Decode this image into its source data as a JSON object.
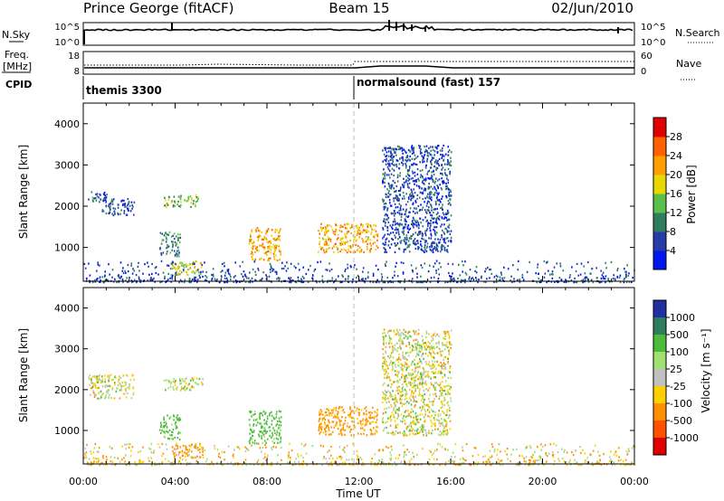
{
  "header": {
    "station": "Prince George (fitACF)",
    "beam": "Beam 15",
    "date": "02/Jun/2010"
  },
  "strips": {
    "nsky_label": "N.Sky",
    "nsky_ticks": [
      "10^5",
      "10^0"
    ],
    "nsearch_label": "N.Search",
    "nsearch_ticks": [
      "10^5",
      "10^0"
    ],
    "freq_label": "Freq.",
    "freq_unit": "[MHz]",
    "freq_ticks": [
      "18",
      "8"
    ],
    "nave_label": "Nave",
    "nave_ticks": [
      "60",
      "0"
    ],
    "cpid_label": "CPID",
    "cpid_segments": [
      {
        "label": "themis 3300",
        "start_hour": 0
      },
      {
        "label": "normalsound (fast) 157",
        "start_hour": 12
      }
    ]
  },
  "chart_data": [
    {
      "type": "heatmap",
      "panel": "power",
      "xlabel": "",
      "ylabel": "Slant Range [km]",
      "xlim": [
        0,
        24
      ],
      "ylim": [
        180,
        4500
      ],
      "y_ticks": [
        "1000",
        "2000",
        "3000",
        "4000"
      ],
      "colorbar_label": "Power [dB]",
      "colorbar_ticks": [
        "4",
        "8",
        "12",
        "16",
        "20",
        "24",
        "28"
      ],
      "colors": [
        "#0018f0",
        "#283ca8",
        "#2e7d5f",
        "#5bc04a",
        "#e6d800",
        "#ffa000",
        "#ff6000",
        "#e00000"
      ],
      "scatter_regions": [
        {
          "hours": [
            0.2,
            1.0
          ],
          "range_km": [
            2100,
            2400
          ],
          "value": 6
        },
        {
          "hours": [
            0.8,
            2.2
          ],
          "range_km": [
            1800,
            2200
          ],
          "value": 4
        },
        {
          "hours": [
            3.5,
            5.0
          ],
          "range_km": [
            2000,
            2300
          ],
          "value": 12
        },
        {
          "hours": [
            3.3,
            4.2
          ],
          "range_km": [
            800,
            1400
          ],
          "value": 8
        },
        {
          "hours": [
            3.8,
            5.2
          ],
          "range_km": [
            350,
            700
          ],
          "value": 16
        },
        {
          "hours": [
            7.2,
            8.6
          ],
          "range_km": [
            700,
            1500
          ],
          "value": 20
        },
        {
          "hours": [
            10.2,
            12.8
          ],
          "range_km": [
            900,
            1600
          ],
          "value": 20
        },
        {
          "hours": [
            13.0,
            16.0
          ],
          "range_km": [
            900,
            3500
          ],
          "value": 4
        },
        {
          "hours": [
            0.0,
            24.0
          ],
          "range_km": [
            180,
            700
          ],
          "value": 4
        }
      ]
    },
    {
      "type": "heatmap",
      "panel": "velocity",
      "xlabel": "Time UT",
      "ylabel": "Slant Range [km]",
      "xlim": [
        0,
        24
      ],
      "ylim": [
        180,
        4500
      ],
      "x_ticks": [
        "00:00",
        "04:00",
        "08:00",
        "12:00",
        "16:00",
        "20:00",
        "00:00"
      ],
      "y_ticks": [
        "1000",
        "2000",
        "3000",
        "4000"
      ],
      "colorbar_label": "Velocity [m s⁻¹]",
      "colorbar_ticks": [
        "1000",
        "500",
        "100",
        "25",
        "-25",
        "-100",
        "-500",
        "-1000"
      ],
      "colors": [
        "#2030a0",
        "#2e7d5f",
        "#4cbb3c",
        "#a0e070",
        "#c0c0c0",
        "#ffd000",
        "#ff9000",
        "#ff5000",
        "#e00000"
      ],
      "scatter_regions": [
        {
          "hours": [
            0.2,
            2.2
          ],
          "range_km": [
            1800,
            2400
          ],
          "value": 0
        },
        {
          "hours": [
            3.5,
            5.2
          ],
          "range_km": [
            2000,
            2300
          ],
          "value": 0
        },
        {
          "hours": [
            3.3,
            4.2
          ],
          "range_km": [
            800,
            1400
          ],
          "value": 200
        },
        {
          "hours": [
            3.8,
            5.2
          ],
          "range_km": [
            350,
            700
          ],
          "value": -200
        },
        {
          "hours": [
            7.2,
            8.6
          ],
          "range_km": [
            700,
            1500
          ],
          "value": 200
        },
        {
          "hours": [
            10.2,
            12.8
          ],
          "range_km": [
            900,
            1600
          ],
          "value": -200
        },
        {
          "hours": [
            13.0,
            16.0
          ],
          "range_km": [
            900,
            3500
          ],
          "value": 0
        },
        {
          "hours": [
            0.0,
            24.0
          ],
          "range_km": [
            180,
            700
          ],
          "value": -50
        }
      ]
    }
  ]
}
